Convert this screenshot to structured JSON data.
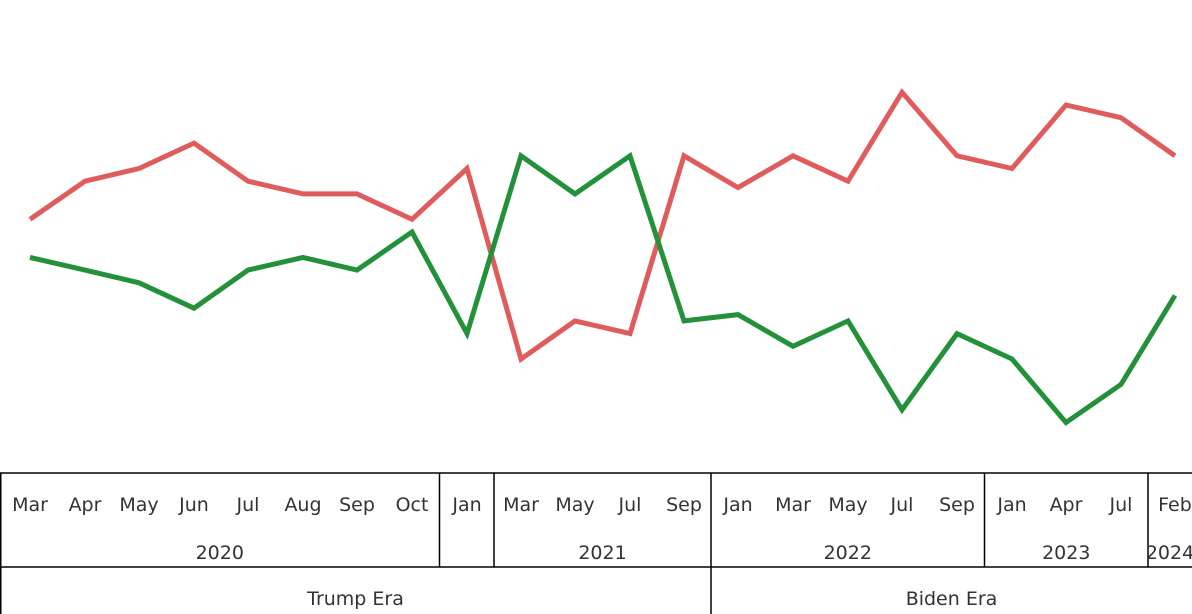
{
  "chart_data": {
    "type": "line",
    "title": "",
    "xlabel": "",
    "ylabel": "",
    "ylim": [
      18,
      62
    ],
    "grid": false,
    "legend": "none",
    "x": [
      "Mar 2020",
      "Apr 2020",
      "May 2020",
      "Jun 2020",
      "Jul 2020",
      "Aug 2020",
      "Sep 2020",
      "Oct 2020",
      "Jan 2021",
      "Mar 2021",
      "May 2021",
      "Jul 2021",
      "Sep 2021",
      "Jan 2022",
      "Mar 2022",
      "May 2022",
      "Jul 2022",
      "Sep 2022",
      "Jan 2023",
      "Apr 2023",
      "Jul 2023",
      "Feb 2024"
    ],
    "series": [
      {
        "color": "#e05c5c",
        "values": [
          46,
          49,
          50,
          52,
          49,
          48,
          48,
          46,
          50,
          35,
          38,
          37,
          51,
          48.5,
          51,
          49,
          56,
          51,
          50,
          55,
          54,
          51
        ]
      },
      {
        "color": "#23913a",
        "values": [
          43,
          42,
          41,
          39,
          42,
          43,
          42,
          45,
          37,
          51,
          48,
          51,
          38,
          38.5,
          36,
          38,
          31,
          37,
          35,
          30,
          33,
          40
        ]
      }
    ],
    "axis_levels": {
      "months": [
        "Mar",
        "Apr",
        "May",
        "Jun",
        "Jul",
        "Aug",
        "Sep",
        "Oct",
        "Jan",
        "Mar",
        "May",
        "Jul",
        "Sep",
        "Jan",
        "Mar",
        "May",
        "Jul",
        "Sep",
        "Jan",
        "Apr",
        "Jul",
        "Feb"
      ],
      "years": [
        {
          "label": "2020",
          "span": [
            0,
            7
          ]
        },
        {
          "label": "",
          "span": [
            8,
            8
          ]
        },
        {
          "label": "2021",
          "span": [
            9,
            12
          ]
        },
        {
          "label": "2022",
          "span": [
            13,
            17
          ]
        },
        {
          "label": "2023",
          "span": [
            18,
            20
          ]
        },
        {
          "label": "2024",
          "span": [
            21,
            21
          ]
        }
      ],
      "eras": [
        {
          "label": "Trump Era",
          "span": [
            0,
            12
          ]
        },
        {
          "label": "Biden Era",
          "span": [
            13,
            21
          ]
        }
      ]
    }
  }
}
